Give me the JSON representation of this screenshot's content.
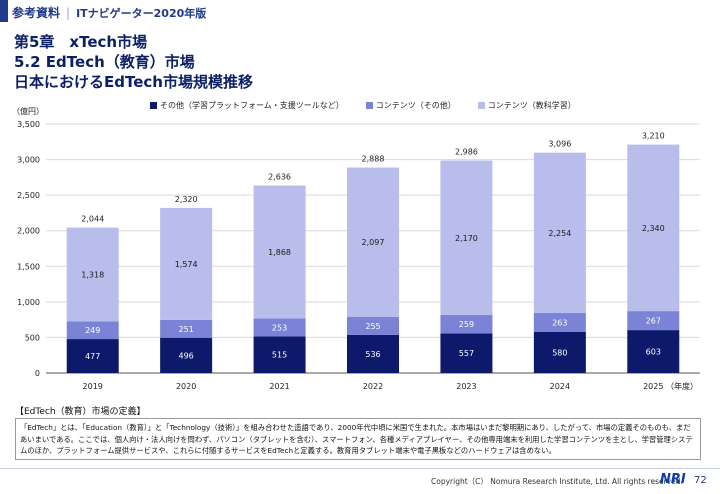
{
  "header": {
    "label": "参考資料",
    "sub": "ITナビゲーター2020年版"
  },
  "titles": {
    "line1": "第5章　xTech市場",
    "line2": "5.2 EdTech（教育）市場",
    "line3": "日本におけるEdTech市場規模推移"
  },
  "chart_data": {
    "type": "bar",
    "stacked": true,
    "y_unit_label": "（億円）",
    "x_unit_label": "（年度）",
    "categories": [
      "2019",
      "2020",
      "2021",
      "2022",
      "2023",
      "2024",
      "2025"
    ],
    "ylim": [
      0,
      3500
    ],
    "yticks": [
      "0",
      "500",
      "1,000",
      "1,500",
      "2,000",
      "2,500",
      "3,000",
      "3,500"
    ],
    "grid": true,
    "legend_position": "top",
    "series": [
      {
        "name": "その他（学習プラットフォーム・支援ツールなど）",
        "color": "#0d1a6b",
        "values": [
          477,
          496,
          515,
          536,
          557,
          580,
          603
        ],
        "labels": [
          "477",
          "496",
          "515",
          "536",
          "557",
          "580",
          "603"
        ]
      },
      {
        "name": "コンテンツ（その他）",
        "color": "#7b83d6",
        "values": [
          249,
          251,
          253,
          255,
          259,
          263,
          267
        ],
        "labels": [
          "249",
          "251",
          "253",
          "255",
          "259",
          "263",
          "267"
        ]
      },
      {
        "name": "コンテンツ（教科学習）",
        "color": "#b8bdec",
        "values": [
          1318,
          1574,
          1868,
          2097,
          2170,
          2254,
          2340
        ],
        "labels": [
          "1,318",
          "1,574",
          "1,868",
          "2,097",
          "2,170",
          "2,254",
          "2,340"
        ]
      }
    ],
    "totals": [
      "2,044",
      "2,320",
      "2,636",
      "2,888",
      "2,986",
      "3,096",
      "3,210"
    ]
  },
  "definition": {
    "title": "【EdTech（教育）市場の定義】",
    "body": "「EdTech」とは、「Education（教育）」と「Technology（技術）」を組み合わせた造語であり、2000年代中頃に米国で生まれた。本市場はいまだ黎明期にあり、したがって、市場の定義そのものも、まだあいまいである。ここでは、個人向け・法人向けを問わず、パソコン（タブレットを含む）、スマートフォン、各種メディアプレイヤー、その他専用端末を利用した学習コンテンツを主とし、学習管理システムのほか、プラットフォーム提供サービスや、これらに付随するサービスをEdTechと定義する。教育用タブレット端末や電子黒板などのハードウェアは含めない。"
  },
  "footer": {
    "copyright": "Copyright（C） Nomura Research Institute, Ltd. All rights reserved.",
    "logo": "NRI",
    "page": "72"
  }
}
